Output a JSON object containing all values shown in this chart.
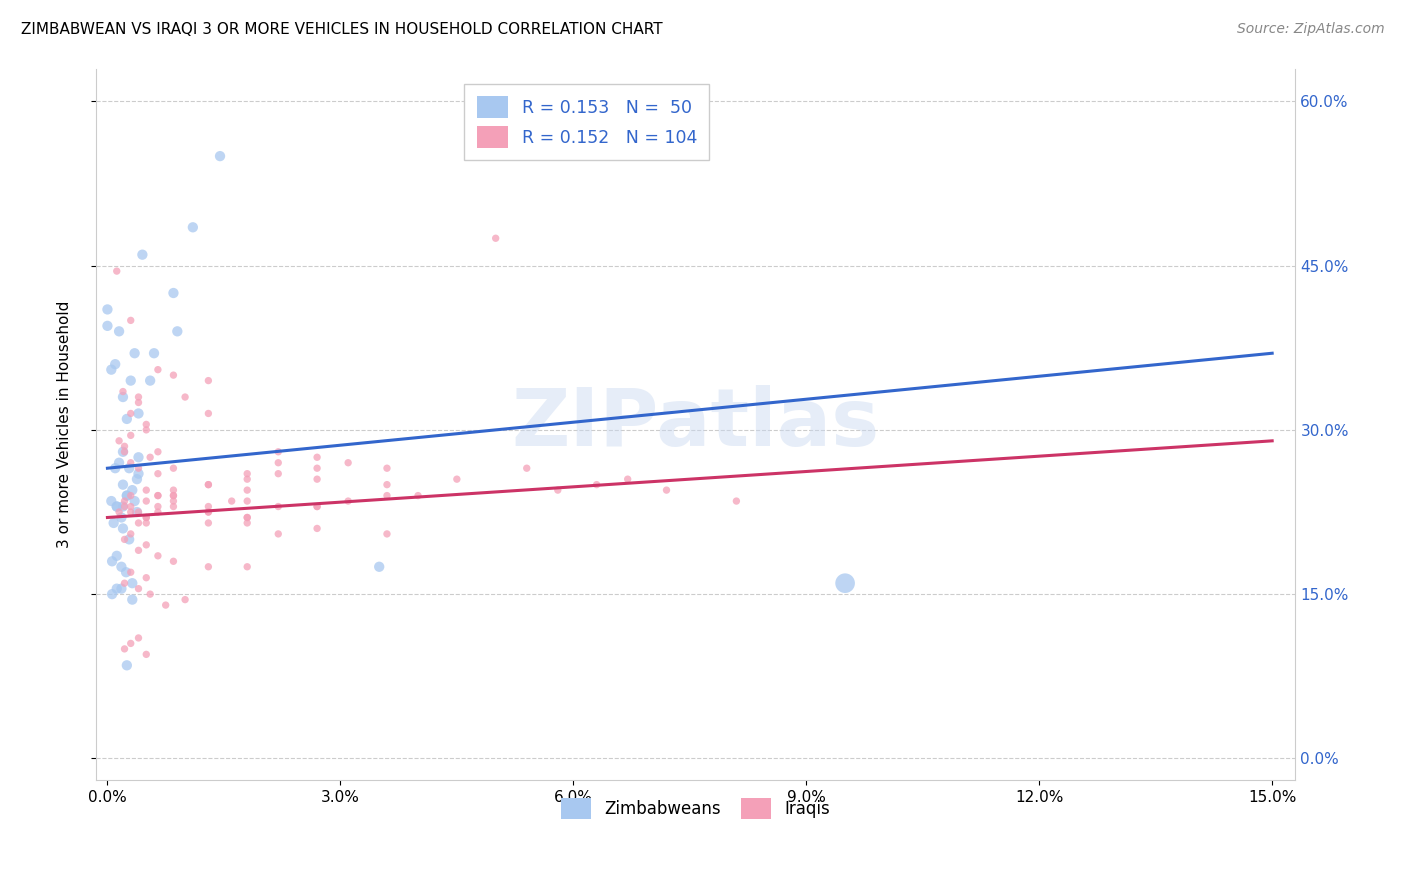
{
  "title": "ZIMBABWEAN VS IRAQI 3 OR MORE VEHICLES IN HOUSEHOLD CORRELATION CHART",
  "source": "Source: ZipAtlas.com",
  "ylabel": "3 or more Vehicles in Household",
  "xlim": [
    0.0,
    15.0
  ],
  "ylim": [
    0.0,
    60.0
  ],
  "blue_color": "#A8C8F0",
  "blue_line_color": "#3366CC",
  "pink_color": "#F4A0B8",
  "pink_line_color": "#CC3366",
  "watermark_text": "ZIPatlas",
  "xtick_vals": [
    0,
    3,
    6,
    9,
    12,
    15
  ],
  "ytick_vals": [
    0,
    15,
    30,
    45,
    60
  ],
  "blue_scatter_x": [
    0.15,
    0.45,
    1.45,
    0.0,
    0.0,
    0.1,
    0.2,
    0.05,
    0.3,
    0.6,
    0.4,
    0.15,
    0.9,
    0.35,
    0.25,
    0.2,
    0.1,
    0.05,
    0.4,
    0.25,
    0.2,
    0.35,
    0.85,
    0.55,
    0.4,
    0.25,
    0.12,
    0.18,
    0.08,
    3.5,
    0.28,
    0.2,
    0.12,
    0.32,
    0.38,
    0.2,
    0.28,
    0.12,
    0.06,
    0.18,
    0.24,
    0.32,
    1.1,
    0.18,
    0.12,
    0.06,
    0.25,
    0.32,
    9.5,
    0.38
  ],
  "blue_scatter_y": [
    27.0,
    46.0,
    55.0,
    39.5,
    41.0,
    36.0,
    33.0,
    35.5,
    34.5,
    37.0,
    31.5,
    39.0,
    39.0,
    37.0,
    31.0,
    28.0,
    26.5,
    23.5,
    26.0,
    24.0,
    23.0,
    23.5,
    42.5,
    34.5,
    27.5,
    24.0,
    23.0,
    22.0,
    21.5,
    17.5,
    26.5,
    25.0,
    23.0,
    24.5,
    22.5,
    21.0,
    20.0,
    18.5,
    18.0,
    17.5,
    17.0,
    16.0,
    48.5,
    15.5,
    15.5,
    15.0,
    8.5,
    14.5,
    16.0,
    25.5
  ],
  "blue_sizes": [
    55,
    55,
    55,
    55,
    55,
    55,
    55,
    55,
    55,
    55,
    55,
    55,
    55,
    55,
    55,
    55,
    55,
    55,
    55,
    55,
    55,
    55,
    55,
    55,
    55,
    55,
    55,
    55,
    55,
    55,
    55,
    55,
    55,
    55,
    55,
    55,
    55,
    55,
    55,
    55,
    55,
    55,
    55,
    55,
    55,
    55,
    55,
    55,
    200,
    55
  ],
  "pink_scatter_x": [
    0.12,
    0.3,
    0.65,
    0.85,
    1.3,
    0.2,
    0.4,
    0.5,
    0.3,
    0.15,
    0.22,
    0.65,
    1.0,
    0.4,
    0.3,
    0.5,
    0.22,
    0.55,
    0.3,
    0.4,
    0.85,
    1.3,
    0.65,
    0.5,
    0.3,
    0.22,
    0.15,
    1.8,
    1.6,
    1.3,
    0.85,
    0.65,
    0.5,
    0.4,
    2.2,
    1.8,
    1.3,
    0.85,
    0.65,
    2.7,
    2.2,
    1.8,
    3.6,
    3.1,
    4.5,
    5.4,
    6.3,
    7.2,
    2.7,
    2.2,
    0.3,
    0.22,
    0.5,
    0.4,
    0.65,
    0.85,
    1.3,
    1.8,
    0.3,
    0.5,
    0.22,
    0.4,
    0.55,
    1.0,
    0.75,
    1.3,
    1.8,
    2.2,
    2.7,
    3.6,
    5.0,
    0.3,
    0.5,
    0.85,
    0.22,
    0.4,
    1.8,
    1.3,
    0.85,
    0.65,
    0.5,
    0.3,
    2.2,
    2.7,
    3.1,
    4.0,
    5.8,
    6.7,
    8.1,
    2.7,
    3.6,
    1.8,
    1.3,
    0.85,
    0.65,
    0.5,
    3.6,
    2.7,
    1.8,
    1.3,
    0.4,
    0.3,
    0.22,
    0.5
  ],
  "pink_scatter_y": [
    44.5,
    40.0,
    35.5,
    35.0,
    34.5,
    33.5,
    32.5,
    30.5,
    29.5,
    29.0,
    28.5,
    28.0,
    33.0,
    33.0,
    31.5,
    30.0,
    28.0,
    27.5,
    27.0,
    26.5,
    26.5,
    31.5,
    26.0,
    24.5,
    24.0,
    23.5,
    22.5,
    24.5,
    23.5,
    23.0,
    24.0,
    23.0,
    22.0,
    21.5,
    27.0,
    25.5,
    25.0,
    24.5,
    24.0,
    26.5,
    26.0,
    26.0,
    26.5,
    27.0,
    25.5,
    26.5,
    25.0,
    24.5,
    27.5,
    28.0,
    20.5,
    20.0,
    19.5,
    19.0,
    18.5,
    18.0,
    17.5,
    17.5,
    17.0,
    16.5,
    16.0,
    15.5,
    15.0,
    14.5,
    14.0,
    22.5,
    21.5,
    20.5,
    21.0,
    20.5,
    47.5,
    23.0,
    22.0,
    23.5,
    23.0,
    22.5,
    22.0,
    25.0,
    24.0,
    24.0,
    23.5,
    22.5,
    23.0,
    23.0,
    23.5,
    24.0,
    24.5,
    25.5,
    23.5,
    25.5,
    25.0,
    22.0,
    21.5,
    23.0,
    22.5,
    21.5,
    24.0,
    23.0,
    23.5,
    22.5,
    11.0,
    10.5,
    10.0,
    9.5
  ],
  "pink_size": 28,
  "blue_trend_x0": 0.0,
  "blue_trend_y0": 26.5,
  "blue_trend_x1": 15.0,
  "blue_trend_y1": 37.0,
  "pink_trend_x0": 0.0,
  "pink_trend_y0": 22.0,
  "pink_trend_x1": 15.0,
  "pink_trend_y1": 29.0
}
